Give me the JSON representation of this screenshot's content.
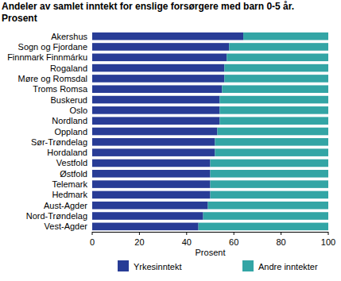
{
  "chart_data": {
    "type": "bar",
    "orientation": "horizontal",
    "stacked": true,
    "title": "Andeler av samlet inntekt for enslige forsørgere med barn 0-5 år.",
    "subtitle": "Prosent",
    "x_label": "Prosent",
    "categories": [
      "Akershus",
      "Sogn og Fjordane",
      "Finnmark Finnmárku",
      "Rogaland",
      "Møre og Romsdal",
      "Troms Romsa",
      "Buskerud",
      "Oslo",
      "Nordland",
      "Oppland",
      "Sør-Trøndelag",
      "Hordaland",
      "Vestfold",
      "Østfold",
      "Telemark",
      "Hedmark",
      "Aust-Agder",
      "Nord-Trøndelag",
      "Vest-Agder"
    ],
    "series": [
      {
        "name": "Yrkesinntekt",
        "color": "#283c96",
        "values": [
          64,
          58,
          57,
          56,
          56,
          55,
          54,
          54,
          54,
          53,
          52,
          52,
          50,
          50,
          50,
          50,
          49,
          47,
          45
        ]
      },
      {
        "name": "Andre inntekter",
        "color": "#33a5a5",
        "values": [
          36,
          42,
          43,
          44,
          44,
          45,
          46,
          46,
          46,
          47,
          48,
          48,
          50,
          50,
          50,
          50,
          51,
          53,
          55
        ]
      }
    ],
    "xlim": [
      0,
      100
    ],
    "xticks": [
      0,
      20,
      40,
      60,
      80,
      100
    ],
    "grid": false,
    "legend": "bottom"
  }
}
